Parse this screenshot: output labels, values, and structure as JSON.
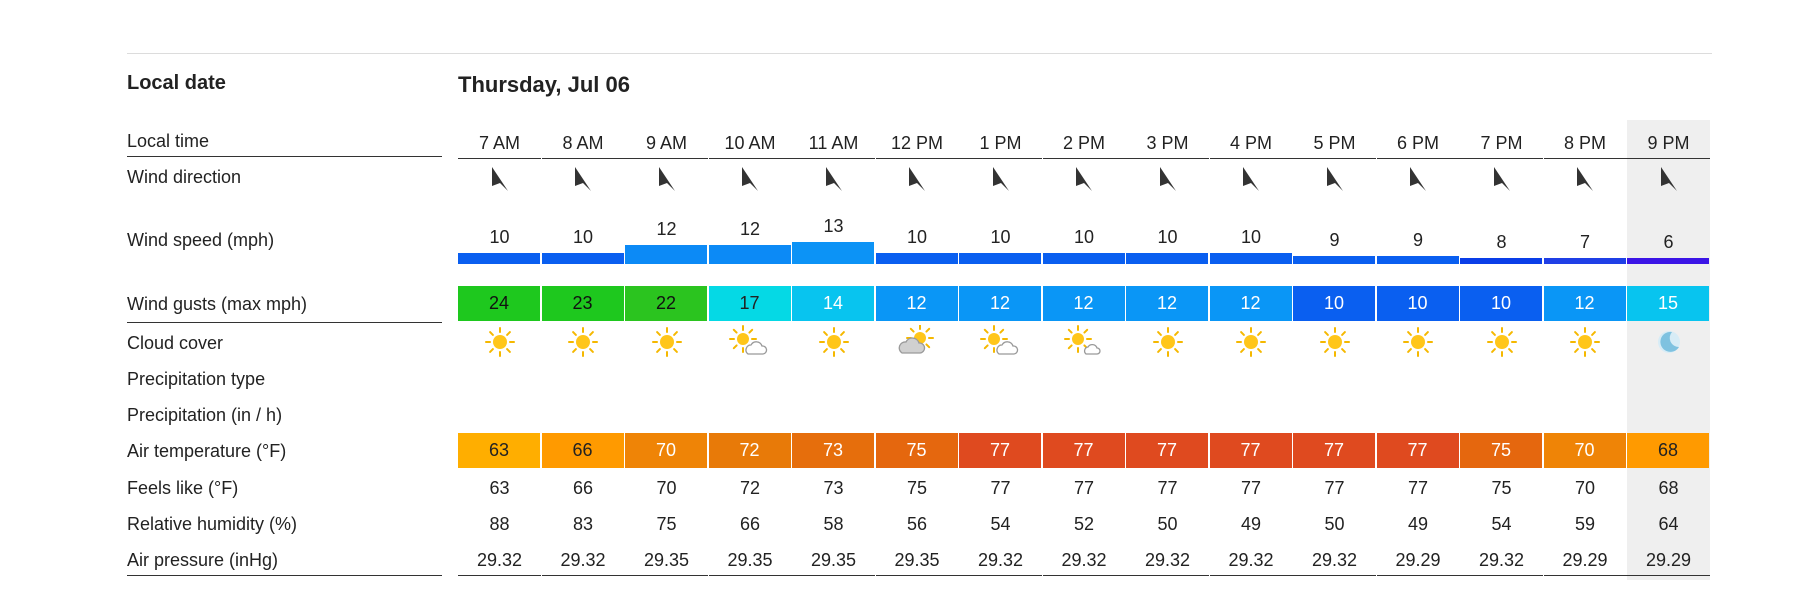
{
  "labels": {
    "local_date": "Local date",
    "local_time": "Local time",
    "wind_direction": "Wind direction",
    "wind_speed": "Wind speed (mph)",
    "wind_gusts": "Wind gusts (max mph)",
    "cloud_cover": "Cloud cover",
    "precip_type": "Precipitation type",
    "precip_amount": "Precipitation (in / h)",
    "air_temp": "Air temperature (°F)",
    "feels_like": "Feels like (°F)",
    "humidity": "Relative humidity (%)",
    "pressure": "Air pressure (inHg)"
  },
  "date": "Thursday, Jul 06",
  "highlighted_hour": "9 PM",
  "hours": [
    {
      "time": "7 AM",
      "wind_speed": "10",
      "wind_speed_color": "#0a5ff0",
      "gust": "24",
      "gust_color": "#1ec81e",
      "gust_text": "#111",
      "cloud": "sun-icon",
      "temp": "63",
      "temp_color": "#ffae00",
      "temp_text": "#222",
      "feels": "63",
      "humidity": "88",
      "pressure": "29.32"
    },
    {
      "time": "8 AM",
      "wind_speed": "10",
      "wind_speed_color": "#0a5ff0",
      "gust": "23",
      "gust_color": "#1ec81e",
      "gust_text": "#111",
      "cloud": "sun-icon",
      "temp": "66",
      "temp_color": "#ff9a00",
      "temp_text": "#222",
      "feels": "66",
      "humidity": "83",
      "pressure": "29.32"
    },
    {
      "time": "9 AM",
      "wind_speed": "12",
      "wind_speed_color": "#0c8af6",
      "gust": "22",
      "gust_color": "#2bc41f",
      "gust_text": "#111",
      "cloud": "sun-icon",
      "temp": "70",
      "temp_color": "#ef8406",
      "temp_text": "#fff",
      "feels": "70",
      "humidity": "75",
      "pressure": "29.35"
    },
    {
      "time": "10 AM",
      "wind_speed": "12",
      "wind_speed_color": "#0c8af6",
      "gust": "17",
      "gust_color": "#05d9e5",
      "gust_text": "#222",
      "cloud": "sun-cloud-icon",
      "temp": "72",
      "temp_color": "#e87a08",
      "temp_text": "#fff",
      "feels": "72",
      "humidity": "66",
      "pressure": "29.35"
    },
    {
      "time": "11 AM",
      "wind_speed": "13",
      "wind_speed_color": "#0c93f6",
      "gust": "14",
      "gust_color": "#08c4ef",
      "gust_text": "#fff",
      "cloud": "sun-icon",
      "temp": "73",
      "temp_color": "#e66e0c",
      "temp_text": "#fff",
      "feels": "73",
      "humidity": "58",
      "pressure": "29.35"
    },
    {
      "time": "12 PM",
      "wind_speed": "10",
      "wind_speed_color": "#0a5ff0",
      "gust": "12",
      "gust_color": "#0a96f6",
      "gust_text": "#fff",
      "cloud": "cloud-sun-icon",
      "temp": "75",
      "temp_color": "#e5670e",
      "temp_text": "#fff",
      "feels": "75",
      "humidity": "56",
      "pressure": "29.35"
    },
    {
      "time": "1 PM",
      "wind_speed": "10",
      "wind_speed_color": "#0a5ff0",
      "gust": "12",
      "gust_color": "#0a96f6",
      "gust_text": "#fff",
      "cloud": "sun-cloud-icon",
      "temp": "77",
      "temp_color": "#df4a1f",
      "temp_text": "#fff",
      "feels": "77",
      "humidity": "54",
      "pressure": "29.32"
    },
    {
      "time": "2 PM",
      "wind_speed": "10",
      "wind_speed_color": "#0a5ff0",
      "gust": "12",
      "gust_color": "#0a96f6",
      "gust_text": "#fff",
      "cloud": "sun-small-cloud-icon",
      "temp": "77",
      "temp_color": "#df4a1f",
      "temp_text": "#fff",
      "feels": "77",
      "humidity": "52",
      "pressure": "29.32"
    },
    {
      "time": "3 PM",
      "wind_speed": "10",
      "wind_speed_color": "#0a5ff0",
      "gust": "12",
      "gust_color": "#0a96f6",
      "gust_text": "#fff",
      "cloud": "sun-icon",
      "temp": "77",
      "temp_color": "#df4a1f",
      "temp_text": "#fff",
      "feels": "77",
      "humidity": "50",
      "pressure": "29.32"
    },
    {
      "time": "4 PM",
      "wind_speed": "10",
      "wind_speed_color": "#0a5ff0",
      "gust": "12",
      "gust_color": "#0a96f6",
      "gust_text": "#fff",
      "cloud": "sun-icon",
      "temp": "77",
      "temp_color": "#df4a1f",
      "temp_text": "#fff",
      "feels": "77",
      "humidity": "49",
      "pressure": "29.32"
    },
    {
      "time": "5 PM",
      "wind_speed": "9",
      "wind_speed_color": "#0a5ff0",
      "gust": "10",
      "gust_color": "#0a5ff0",
      "gust_text": "#fff",
      "cloud": "sun-icon",
      "temp": "77",
      "temp_color": "#df4a1f",
      "temp_text": "#fff",
      "feels": "77",
      "humidity": "50",
      "pressure": "29.32"
    },
    {
      "time": "6 PM",
      "wind_speed": "9",
      "wind_speed_color": "#0a5ff0",
      "gust": "10",
      "gust_color": "#0a5ff0",
      "gust_text": "#fff",
      "cloud": "sun-icon",
      "temp": "77",
      "temp_color": "#df4a1f",
      "temp_text": "#fff",
      "feels": "77",
      "humidity": "49",
      "pressure": "29.29"
    },
    {
      "time": "7 PM",
      "wind_speed": "8",
      "wind_speed_color": "#0a3ee8",
      "gust": "10",
      "gust_color": "#0a5ff0",
      "gust_text": "#fff",
      "cloud": "sun-icon",
      "temp": "75",
      "temp_color": "#e5670e",
      "temp_text": "#fff",
      "feels": "75",
      "humidity": "54",
      "pressure": "29.32"
    },
    {
      "time": "8 PM",
      "wind_speed": "7",
      "wind_speed_color": "#1f3fe6",
      "gust": "12",
      "gust_color": "#0a96f6",
      "gust_text": "#fff",
      "cloud": "sun-icon",
      "temp": "70",
      "temp_color": "#ef8406",
      "temp_text": "#fff",
      "feels": "70",
      "humidity": "59",
      "pressure": "29.29"
    },
    {
      "time": "9 PM",
      "wind_speed": "6",
      "wind_speed_color": "#3b14e6",
      "gust": "15",
      "gust_color": "#08c4ef",
      "gust_text": "#fff",
      "cloud": "moon-icon",
      "temp": "68",
      "temp_color": "#ff9a00",
      "temp_text": "#222",
      "feels": "68",
      "humidity": "64",
      "pressure": "29.29"
    }
  ]
}
